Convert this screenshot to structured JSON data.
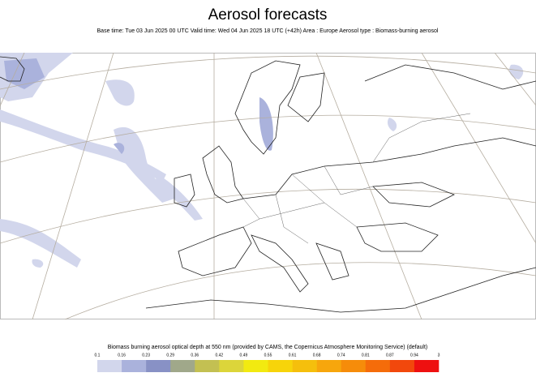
{
  "header": {
    "title": "Aerosol forecasts",
    "subtitle": "Base time: Tue 03 Jun 2025 00 UTC Valid time: Wed 04 Jun 2025 18 UTC (+42h) Area : Europe Aerosol type : Biomass-burning aerosol"
  },
  "legend": {
    "title": "Biomass burning aerosol optical depth at 550 nm (provided by CAMS, the Copernicus Atmosphere Monitoring Service) (default)",
    "ticks": [
      0.1,
      0.16,
      0.23,
      0.29,
      0.36,
      0.42,
      0.49,
      0.55,
      0.61,
      0.68,
      0.74,
      0.81,
      0.87,
      0.94,
      3
    ],
    "colors": [
      "#d2d6ec",
      "#aab2dc",
      "#8891c5",
      "#a0a88a",
      "#c3c052",
      "#dcd53a",
      "#f2ea10",
      "#f7d40a",
      "#f5bf0c",
      "#f7a60c",
      "#f68c0a",
      "#f56c0a",
      "#f2480c",
      "#ee1010"
    ]
  }
}
